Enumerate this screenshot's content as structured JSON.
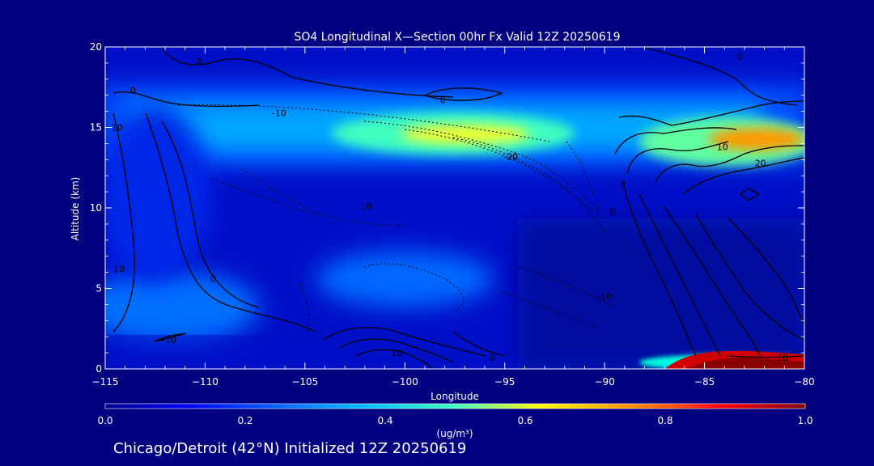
{
  "chart_data": {
    "type": "heatmap",
    "title": "SO4 Longitudinal X—Section 00hr  Fx Valid 12Z 20250619",
    "xlabel": "Longitude",
    "ylabel": "Altitude (km)",
    "xlim": [
      -115,
      -80
    ],
    "ylim": [
      0,
      20
    ],
    "x_ticks": [
      -115,
      -110,
      -105,
      -100,
      -95,
      -90,
      -85,
      -80
    ],
    "x_tick_labels": [
      "−115",
      "−110",
      "−105",
      "−100",
      "−95",
      "−90",
      "−85",
      "−80"
    ],
    "y_ticks": [
      0,
      5,
      10,
      15,
      20
    ],
    "y_tick_labels": [
      "0",
      "5",
      "10",
      "15",
      "20"
    ],
    "colorbar": {
      "label": "(ug/m³)",
      "min": 0.0,
      "max": 1.0,
      "ticks": [
        0.0,
        0.2,
        0.4,
        0.6,
        0.8,
        1.0
      ],
      "tick_labels": [
        "0.0",
        "0.2",
        "0.4",
        "0.6",
        "0.8",
        "1.0"
      ]
    },
    "field_features": [
      {
        "description": "upper-level band",
        "lon_range": [
          -115,
          -80
        ],
        "alt_center_km": 14.5,
        "value": 0.35
      },
      {
        "description": "upper-level maximum",
        "lon": -96,
        "alt_km": 14.5,
        "value": 0.6
      },
      {
        "description": "eastern upper maximum",
        "lon": -82,
        "alt_km": 14,
        "value": 0.7
      },
      {
        "description": "surface maximum",
        "lon_range": [
          -86,
          -81
        ],
        "alt_km": 0.5,
        "value": 1.0
      },
      {
        "description": "low-level plume",
        "lon": -97,
        "alt_km": 5.5,
        "value": 0.25
      }
    ],
    "contour_labels": [
      {
        "text": "0",
        "lon": -110.3,
        "alt": 19.1
      },
      {
        "text": "0",
        "lon": -113.6,
        "alt": 17.3
      },
      {
        "text": "0",
        "lon": -98.1,
        "alt": 16.7
      },
      {
        "text": "0",
        "lon": -83.2,
        "alt": 19.4
      },
      {
        "text": "-10",
        "lon": -106.3,
        "alt": 15.9
      },
      {
        "text": "10",
        "lon": -114.4,
        "alt": 15.0
      },
      {
        "text": "-20",
        "lon": -94.7,
        "alt": 13.2
      },
      {
        "text": "10",
        "lon": -84.1,
        "alt": 13.8
      },
      {
        "text": "20",
        "lon": -82.2,
        "alt": 12.8
      },
      {
        "text": "0",
        "lon": -89.1,
        "alt": 11.5
      },
      {
        "text": "0",
        "lon": -89.6,
        "alt": 9.8
      },
      {
        "text": "-10",
        "lon": -102.0,
        "alt": 10.1
      },
      {
        "text": "0",
        "lon": -109.6,
        "alt": 5.6
      },
      {
        "text": "10",
        "lon": -114.3,
        "alt": 6.2
      },
      {
        "text": "-10",
        "lon": -90.0,
        "alt": 4.5
      },
      {
        "text": "10",
        "lon": -100.4,
        "alt": 1.0
      },
      {
        "text": "0",
        "lon": -95.6,
        "alt": 0.7
      },
      {
        "text": "10",
        "lon": -81.1,
        "alt": 0.7
      },
      {
        "text": "-10",
        "lon": -111.8,
        "alt": 1.8
      }
    ]
  },
  "footer": {
    "text": "Chicago/Detroit (42°N) Initialized 12Z 20250619"
  }
}
